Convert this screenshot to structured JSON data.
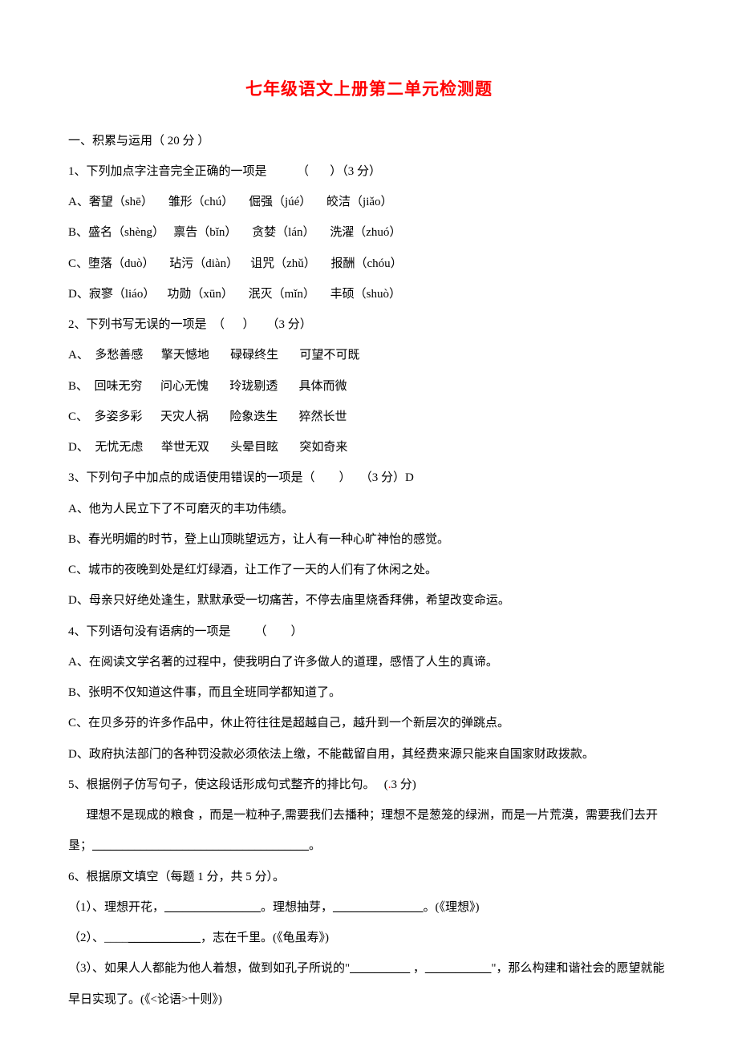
{
  "doc": {
    "title": "七年级语文上册第二单元检测题",
    "title_color": "#ff0000",
    "title_fontsize": 21,
    "body_fontsize": 15,
    "body_color": "#000000",
    "line_height": 2.55,
    "lines": {
      "s1": "一、积累与运用（ 20 分 ）",
      "q1": "1、下列加点字注音完全正确的一项是          （       ）（3 分）",
      "q1a": "A、奢望（shē）     雏形（chú）     倔强（júé）     皎洁（jiǎo）",
      "q1b": "B、盛名（shèng）   禀告（bǐn）     贪婪（lán）     洗濯（zhuó）",
      "q1c": "C、堕落（duò）     玷污（diàn）    诅咒（zhǔ）     报酬（chóu）",
      "q1d": "D、寂寥（liáo）    功勋（xūn）     泯灭（mǐn）     丰硕（shuò）",
      "q2": "2、下列书写无误的一项是  （      ）    （3 分）",
      "q2a": "A、  多愁善感      擎天憾地       碌碌终生       可望不可既",
      "q2b": "B、  回味无穷      问心无愧       玲珑剔透       具体而微",
      "q2c": "C、  多姿多彩      天灾人祸       险象迭生       猝然长世",
      "q2d": "D、  无忧无虑      举世无双       头晕目眩       突如奇来",
      "q3": "3、下列句子中加点的成语使用错误的一项是（        ）   （3 分）D",
      "q3a": "A、他为人民立下了不可磨灭的丰功伟绩。",
      "q3b": "B、春光明媚的时节，登上山顶眺望远方，让人有一种心旷神怡的感觉。",
      "q3c": "C、城市的夜晚到处是红灯绿酒，让工作了一天的人们有了休闲之处。",
      "q3d": "D、母亲只好绝处逢生，默默承受一切痛苦，不停去庙里烧香拜佛，希望改变命运。",
      "q4": "4、下列语句没有语病的一项是        （        ）",
      "q4a": "A、在阅读文学名著的过程中，使我明白了许多做人的道理，感悟了人生的真谛。",
      "q4b": "B、张明不仅知道这件事，而且全班同学都知道了。",
      "q4c": "C、在贝多芬的许多作品中，休止符往往是超越自己，越升到一个新层次的弹跳点。",
      "q4d": "D、政府执法部门的各种罚没款必须依法上缴，不能截留自用，其经费来源只能来自国家财政拨款。",
      "q5": "5、根据例子仿写句子，使这段话形成句式整齐的排比句。   (",
      "q5_red": ".",
      "q5_tail": "3 分)",
      "q5_body": "      理想不是现成的粮食 ，而是一粒种子,需要我们去播种；理想不是葱笼的绿洲，而是一片荒漠，需要我们去开垦；",
      "q5_blank": "____________________________________",
      "q5_period": "。",
      "q6": "6、根据原文填空（每题 1 分，共 5 分）。",
      "q6_1a": "（1）、理想开花，",
      "q6_1b": "________________",
      "q6_1c": "。理想抽芽，",
      "q6_1d": "_______________",
      "q6_1e": "。(《理想》)",
      "q6_2a": "（2）、____",
      "q6_2b": "____________",
      "q6_2c": "，志在千里。(《龟虽寿》)",
      "q6_3a": "（3）、如果人人都能为他人着想，做到如孔子所说的\"",
      "q6_3b": "__________",
      "q6_3c": " ，",
      "q6_3d": "___________",
      "q6_3e": "\"，那么构建和谐社会的愿望就能早日实现了。(《<论语>十则》)"
    }
  }
}
